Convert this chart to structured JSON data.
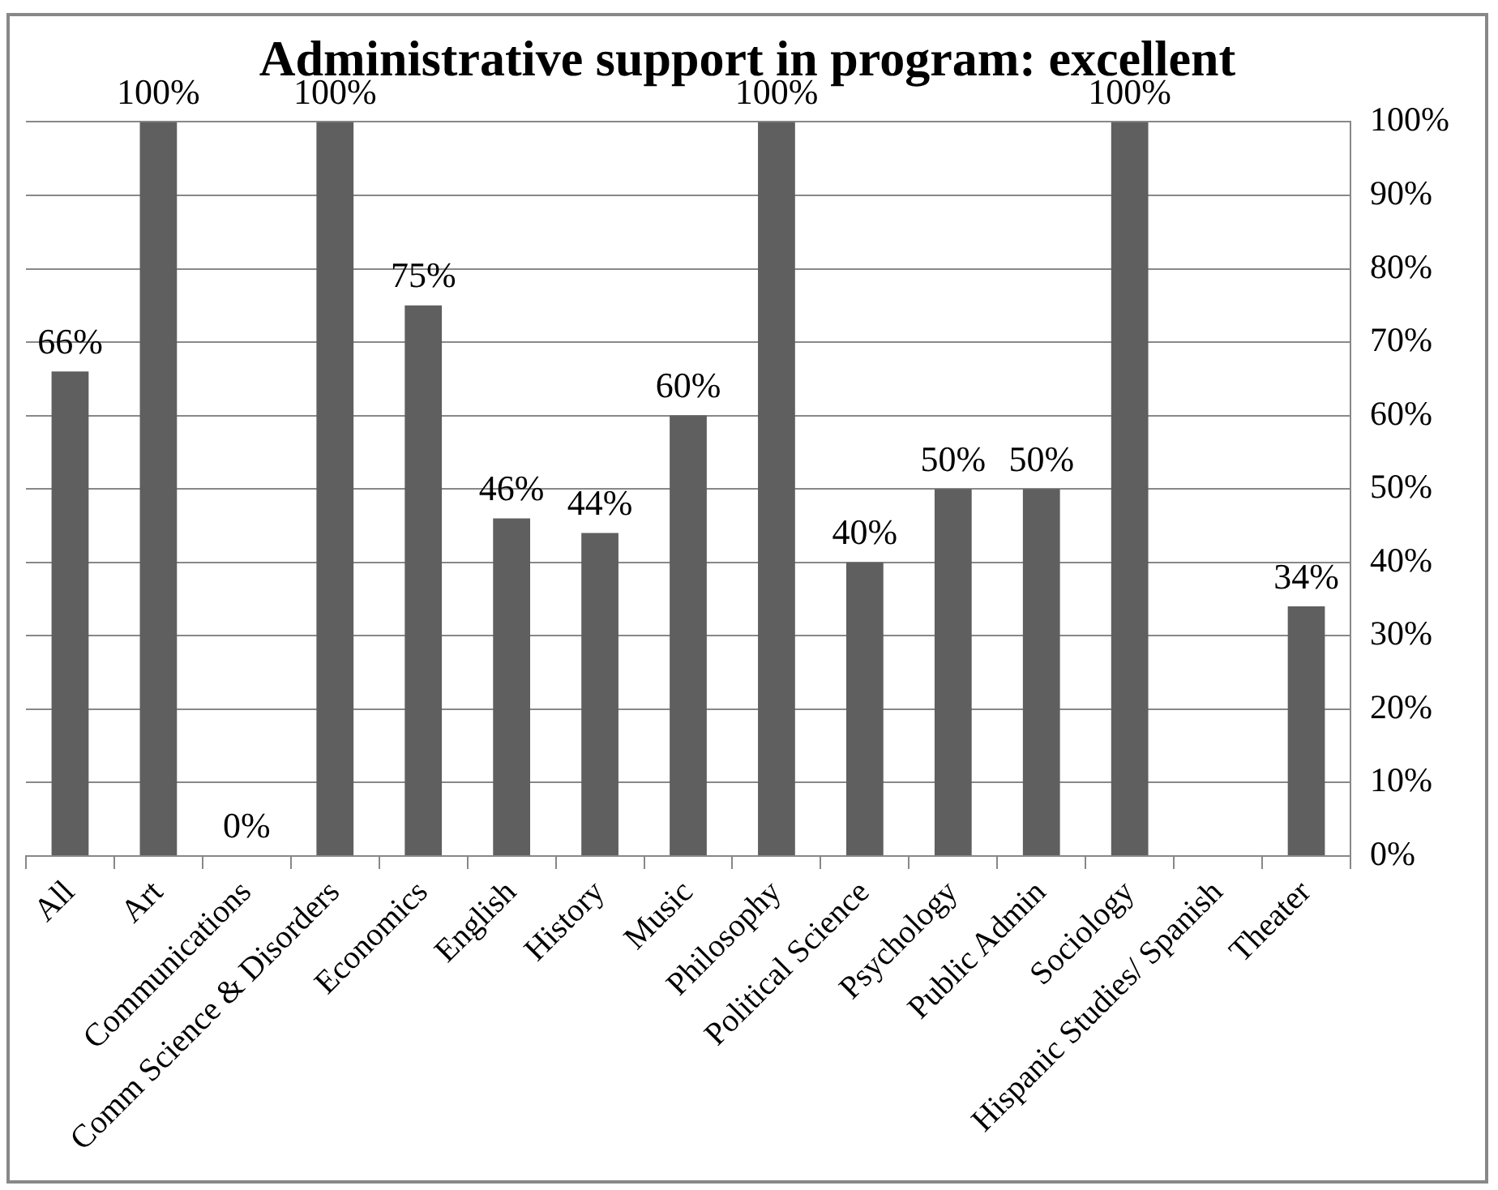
{
  "chart_data": {
    "type": "bar",
    "title": "Administrative support in program: excellent",
    "categories": [
      "All",
      "Art",
      "Communications",
      "Comm Science & Disorders",
      "Economics",
      "English",
      "History",
      "Music",
      "Philosophy",
      "Political Science",
      "Psychology",
      "Public Admin",
      "Sociology",
      "Hispanic Studies/ Spanish",
      "Theater"
    ],
    "values": [
      66,
      100,
      0,
      100,
      75,
      46,
      44,
      60,
      100,
      40,
      50,
      50,
      100,
      null,
      34
    ],
    "value_labels": [
      "66%",
      "100%",
      "0%",
      "100%",
      "75%",
      "46%",
      "44%",
      "60%",
      "100%",
      "40%",
      "50%",
      "50%",
      "100%",
      null,
      "34%"
    ],
    "color": "#5f5f5f",
    "ylim": [
      0,
      100
    ],
    "yticks": [
      {
        "value": 0,
        "label": "0%"
      },
      {
        "value": 10,
        "label": "10%"
      },
      {
        "value": 20,
        "label": "20%"
      },
      {
        "value": 30,
        "label": "30%"
      },
      {
        "value": 40,
        "label": "40%"
      },
      {
        "value": 50,
        "label": "50%"
      },
      {
        "value": 60,
        "label": "60%"
      },
      {
        "value": 70,
        "label": "70%"
      },
      {
        "value": 80,
        "label": "80%"
      },
      {
        "value": 90,
        "label": "90%"
      },
      {
        "value": 100,
        "label": "100%"
      }
    ],
    "grid": "y",
    "legend": false
  }
}
